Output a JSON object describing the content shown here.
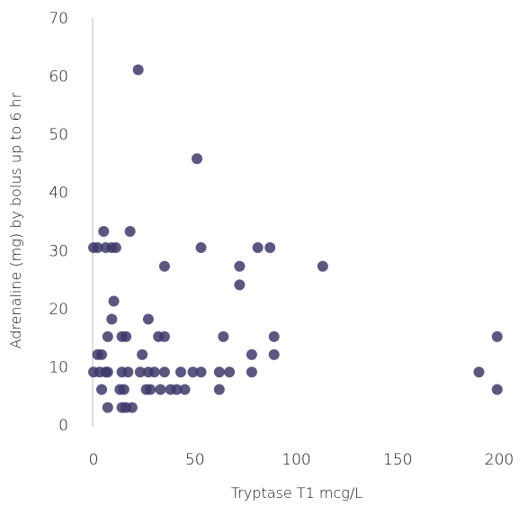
{
  "chart_data": {
    "type": "scatter",
    "title": "",
    "xlabel": "Tryptase T1 mcg/L",
    "ylabel": "Adrenaline (mg) by bolus up to 6 hr",
    "xlim": [
      0,
      200
    ],
    "ylim": [
      0,
      70
    ],
    "xticks": [
      "0",
      "50",
      "100",
      "150",
      "200"
    ],
    "yticks": [
      "0",
      "10",
      "20",
      "30",
      "40",
      "50",
      "60",
      "70"
    ],
    "grid": false,
    "legend": "none",
    "marker_color": "#3d3a6b",
    "points": [
      {
        "x": 0,
        "y": 30.5
      },
      {
        "x": 2,
        "y": 30.5
      },
      {
        "x": 5,
        "y": 33.3
      },
      {
        "x": 6,
        "y": 30.5
      },
      {
        "x": 9,
        "y": 30.5
      },
      {
        "x": 11,
        "y": 30.5
      },
      {
        "x": 10,
        "y": 21.3
      },
      {
        "x": 18,
        "y": 33.3
      },
      {
        "x": 22,
        "y": 61.1
      },
      {
        "x": 35,
        "y": 27.3
      },
      {
        "x": 51,
        "y": 45.8
      },
      {
        "x": 53,
        "y": 30.5
      },
      {
        "x": 72,
        "y": 27.3
      },
      {
        "x": 72,
        "y": 24.1
      },
      {
        "x": 81,
        "y": 30.5
      },
      {
        "x": 87,
        "y": 30.5
      },
      {
        "x": 113,
        "y": 27.3
      },
      {
        "x": 9,
        "y": 18.2
      },
      {
        "x": 27,
        "y": 18.2
      },
      {
        "x": 7,
        "y": 15.2
      },
      {
        "x": 14,
        "y": 15.2
      },
      {
        "x": 16,
        "y": 15.2
      },
      {
        "x": 32,
        "y": 15.2
      },
      {
        "x": 35,
        "y": 15.2
      },
      {
        "x": 64,
        "y": 15.2
      },
      {
        "x": 89,
        "y": 15.2
      },
      {
        "x": 199,
        "y": 15.2
      },
      {
        "x": 2,
        "y": 12.1
      },
      {
        "x": 4,
        "y": 12.1
      },
      {
        "x": 24,
        "y": 12.1
      },
      {
        "x": 78,
        "y": 12.1
      },
      {
        "x": 89,
        "y": 12.1
      },
      {
        "x": 0,
        "y": 9.1
      },
      {
        "x": 3,
        "y": 9.1
      },
      {
        "x": 6,
        "y": 9.1
      },
      {
        "x": 7,
        "y": 9.1
      },
      {
        "x": 14,
        "y": 9.1
      },
      {
        "x": 17,
        "y": 9.1
      },
      {
        "x": 23,
        "y": 9.1
      },
      {
        "x": 27,
        "y": 9.1
      },
      {
        "x": 30,
        "y": 9.1
      },
      {
        "x": 35,
        "y": 9.1
      },
      {
        "x": 43,
        "y": 9.1
      },
      {
        "x": 49,
        "y": 9.1
      },
      {
        "x": 53,
        "y": 9.1
      },
      {
        "x": 62,
        "y": 9.1
      },
      {
        "x": 67,
        "y": 9.1
      },
      {
        "x": 78,
        "y": 9.1
      },
      {
        "x": 190,
        "y": 9.1
      },
      {
        "x": 4,
        "y": 6.1
      },
      {
        "x": 13,
        "y": 6.1
      },
      {
        "x": 15,
        "y": 6.1
      },
      {
        "x": 26,
        "y": 6.1
      },
      {
        "x": 28,
        "y": 6.1
      },
      {
        "x": 33,
        "y": 6.1
      },
      {
        "x": 38,
        "y": 6.1
      },
      {
        "x": 41,
        "y": 6.1
      },
      {
        "x": 45,
        "y": 6.1
      },
      {
        "x": 62,
        "y": 6.1
      },
      {
        "x": 199,
        "y": 6.1
      },
      {
        "x": 7,
        "y": 3.0
      },
      {
        "x": 14,
        "y": 3.0
      },
      {
        "x": 16,
        "y": 3.0
      },
      {
        "x": 19,
        "y": 3.0
      }
    ]
  }
}
